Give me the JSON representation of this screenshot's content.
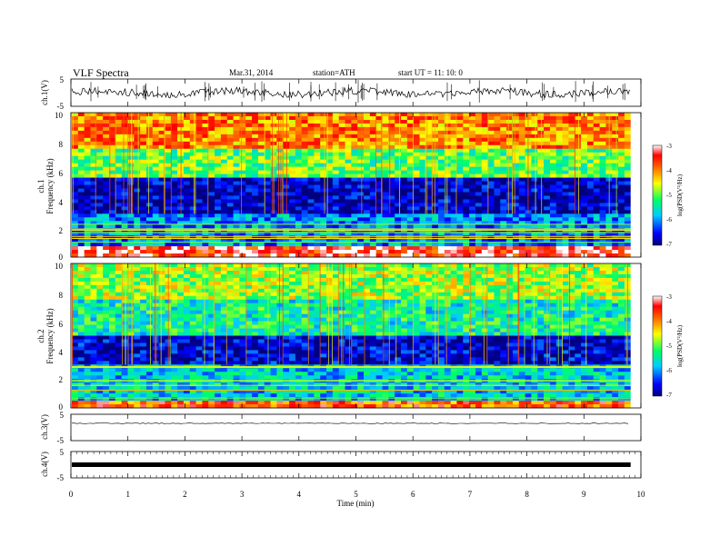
{
  "header": {
    "title": "VLF  Spectra",
    "date": "Mar.31, 2014",
    "station": "station=ATH",
    "start": "start  UT  =   11: 10: 0"
  },
  "chart_data": [
    {
      "type": "line",
      "panel": "ch1-waveform",
      "ylabel": "ch.1(V)",
      "yticks": [
        "5",
        "-5"
      ],
      "ylim": [
        -5,
        5
      ],
      "xlim": [
        0,
        10
      ],
      "data_end_min": 9.82,
      "description_level": "noisy signal around 0 V"
    },
    {
      "type": "heatmap",
      "panel": "ch1-spectrogram",
      "ylabel_top": "ch.1",
      "ylabel": "Frequency  (kHz)",
      "yticks": [
        "0",
        "2",
        "4",
        "6",
        "8",
        "10"
      ],
      "ylim": [
        0,
        10
      ],
      "xlim": [
        0,
        10
      ],
      "colorbar": {
        "label": "log(PSD(V²/Hz)",
        "ticks": [
          "-3",
          "-4",
          "-5",
          "-6",
          "-7"
        ],
        "range": [
          -7,
          -3
        ]
      },
      "bands": [
        {
          "fmin": 0.0,
          "fmax": 0.7,
          "level": -3.4
        },
        {
          "fmin": 0.7,
          "fmax": 3.0,
          "level": -6.0
        },
        {
          "fmin": 3.0,
          "fmax": 5.5,
          "level": -6.8
        },
        {
          "fmin": 5.5,
          "fmax": 7.5,
          "level": -5.0
        },
        {
          "fmin": 7.5,
          "fmax": 10.0,
          "level": -4.0
        }
      ]
    },
    {
      "type": "heatmap",
      "panel": "ch2-spectrogram",
      "ylabel_top": "ch.2",
      "ylabel": "Frequency  (kHz)",
      "yticks": [
        "0",
        "2",
        "4",
        "6",
        "8",
        "10"
      ],
      "ylim": [
        0,
        10
      ],
      "xlim": [
        0,
        10
      ],
      "colorbar": {
        "label": "log(PSD(V²/Hz)",
        "ticks": [
          "-3",
          "-4",
          "-5",
          "-6",
          "-7"
        ],
        "range": [
          -7,
          -3
        ]
      },
      "bands": [
        {
          "fmin": 0.0,
          "fmax": 0.4,
          "level": -3.8
        },
        {
          "fmin": 0.4,
          "fmax": 3.0,
          "level": -5.7
        },
        {
          "fmin": 3.0,
          "fmax": 5.0,
          "level": -6.7
        },
        {
          "fmin": 5.0,
          "fmax": 7.5,
          "level": -5.4
        },
        {
          "fmin": 7.5,
          "fmax": 10.0,
          "level": -4.8
        }
      ]
    },
    {
      "type": "line",
      "panel": "ch3-waveform",
      "ylabel": "ch.3(V)",
      "yticks": [
        "5",
        "-5"
      ],
      "ylim": [
        -5,
        5
      ],
      "xlim": [
        0,
        10
      ],
      "description_level": "flat near 0 V"
    },
    {
      "type": "line",
      "panel": "ch4-waveform",
      "ylabel": "ch.4(V)",
      "yticks": [
        "5",
        "-5"
      ],
      "ylim": [
        -5,
        5
      ],
      "xlim": [
        0,
        10
      ],
      "description_level": "thick flat band near 0 V"
    }
  ],
  "xaxis": {
    "label": "Time  (min)",
    "ticks": [
      "0",
      "1",
      "2",
      "3",
      "4",
      "5",
      "6",
      "7",
      "8",
      "9",
      "10"
    ]
  },
  "colors": {
    "colormap": [
      "#00007f",
      "#0000ff",
      "#00ffff",
      "#00ff00",
      "#ffff00",
      "#ff7f00",
      "#ff0000",
      "#ffffff"
    ]
  }
}
